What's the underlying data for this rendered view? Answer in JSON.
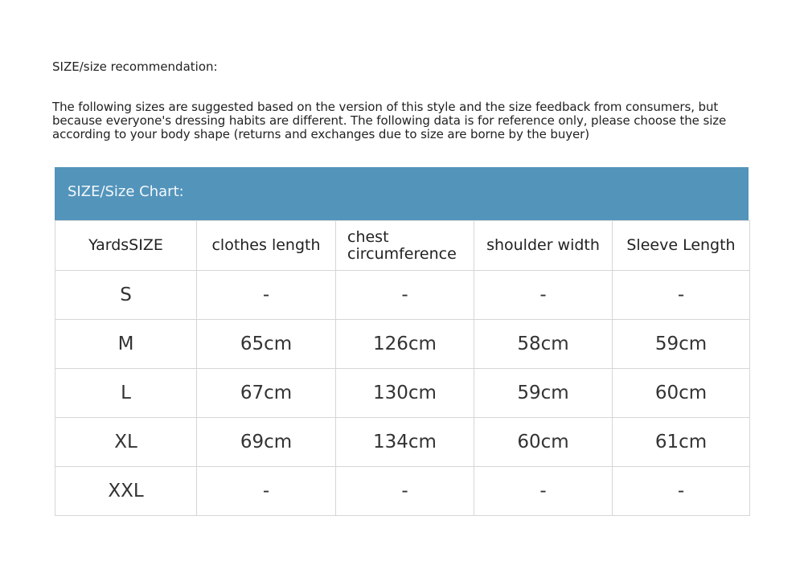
{
  "title": "SIZE/size recommendation:",
  "description": "The following sizes are suggested based on the version of this style and the size feedback from consumers, but because everyone's dressing habits are different. The following data is for reference only, please choose the size according to your body shape (returns and exchanges due to size are borne by the buyer)",
  "chart_title": "SIZE/Size Chart:",
  "header_color": "#5394bb",
  "columns": [
    "YardsSIZE",
    "clothes length",
    "chest circumference",
    "shoulder width",
    "Sleeve Length"
  ],
  "rows": [
    [
      "S",
      "-",
      "-",
      "-",
      "-"
    ],
    [
      "M",
      "65cm",
      "126cm",
      "58cm",
      "59cm"
    ],
    [
      "L",
      "67cm",
      "130cm",
      "59cm",
      "60cm"
    ],
    [
      "XL",
      "69cm",
      "134cm",
      "60cm",
      "61cm"
    ],
    [
      "XXL",
      "-",
      "-",
      "-",
      "-"
    ]
  ]
}
